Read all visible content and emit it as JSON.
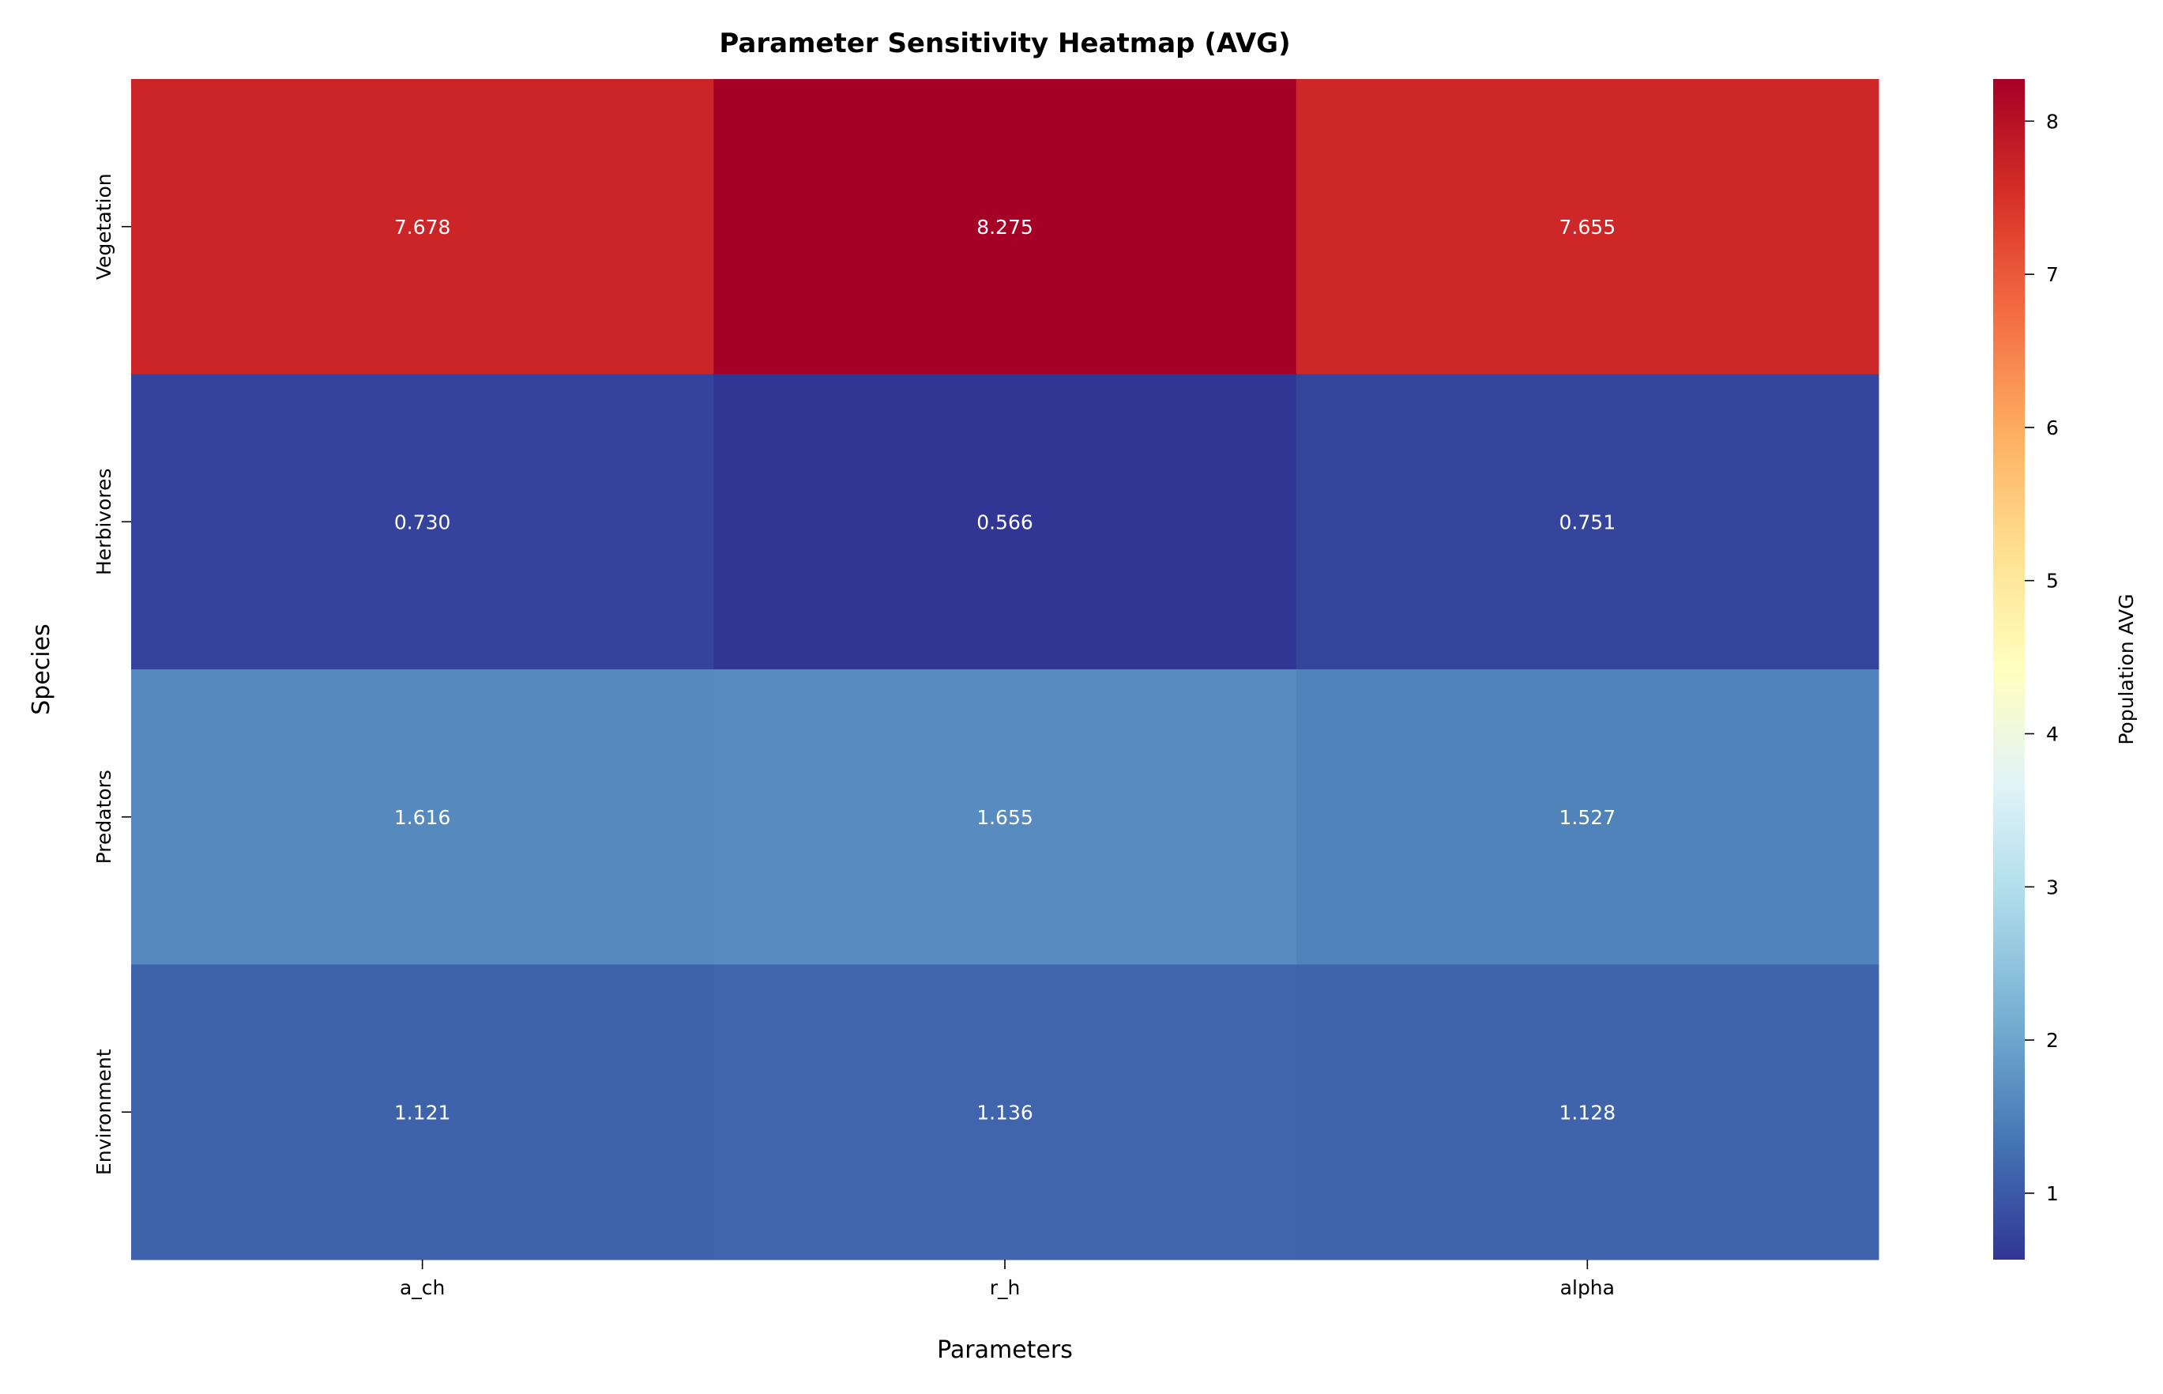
{
  "chart_data": {
    "type": "heatmap",
    "title": "Parameter Sensitivity Heatmap (AVG)",
    "xlabel": "Parameters",
    "ylabel": "Species",
    "x_categories": [
      "a_ch",
      "r_h",
      "alpha"
    ],
    "y_categories": [
      "Vegetation",
      "Herbivores",
      "Predators",
      "Environment"
    ],
    "values": [
      [
        7.678,
        8.275,
        7.655
      ],
      [
        0.73,
        0.566,
        0.751
      ],
      [
        1.616,
        1.655,
        1.527
      ],
      [
        1.121,
        1.136,
        1.128
      ]
    ],
    "value_labels": [
      [
        "7.678",
        "8.275",
        "7.655"
      ],
      [
        "0.730",
        "0.566",
        "0.751"
      ],
      [
        "1.616",
        "1.655",
        "1.527"
      ],
      [
        "1.121",
        "1.136",
        "1.128"
      ]
    ],
    "colormap": "RdYlBu_r",
    "colormap_stops": [
      "#313695",
      "#4575b4",
      "#74add1",
      "#abd9e9",
      "#e0f3f8",
      "#ffffbf",
      "#fee090",
      "#fdae61",
      "#f46d43",
      "#d73027",
      "#a50026"
    ],
    "vmin": 0.566,
    "vmax": 8.275,
    "colorbar": {
      "label": "Population AVG",
      "ticks": [
        1,
        2,
        3,
        4,
        5,
        6,
        7,
        8
      ],
      "tick_labels": [
        "1",
        "2",
        "3",
        "4",
        "5",
        "6",
        "7",
        "8"
      ]
    },
    "annotation_color": "#ffffff",
    "grid": false
  }
}
